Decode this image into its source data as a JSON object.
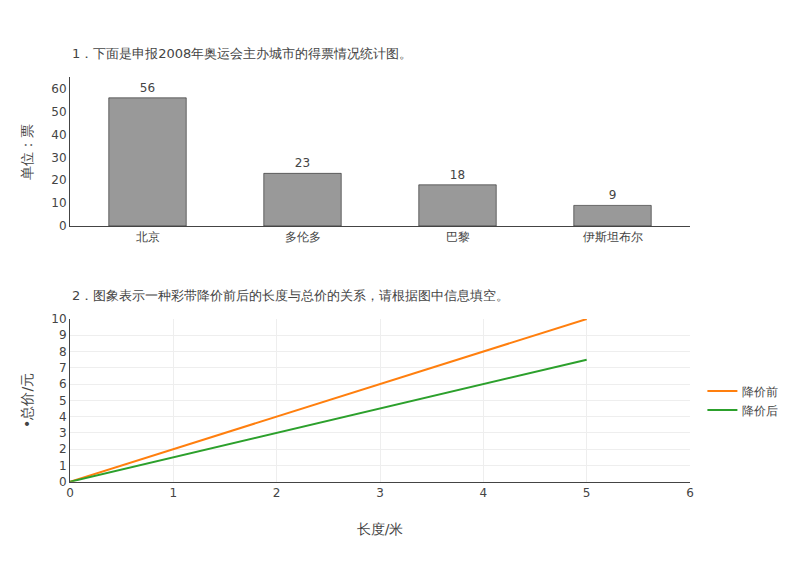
{
  "chart_data": [
    {
      "type": "bar",
      "title": "1．下面是申报2008年奥运会主办城市的得票情况统计图。",
      "categories": [
        "北京",
        "多伦多",
        "巴黎",
        "伊斯坦布尔"
      ],
      "values": [
        56,
        23,
        18,
        9
      ],
      "color": "#999999",
      "ylabel": "单位：票",
      "ylim": [
        0,
        65
      ],
      "yticks": [
        0,
        10,
        20,
        30,
        40,
        50,
        60
      ],
      "grid": false,
      "data_labels": true
    },
    {
      "type": "line",
      "title": "2．图象表示一种彩带降价前后的长度与总价的关系，请根据图中信息填空。",
      "x": [
        0,
        5
      ],
      "series": [
        {
          "name": "降价前",
          "values": [
            0,
            10
          ]
        },
        {
          "name": "降价后",
          "values": [
            0,
            7.5
          ]
        }
      ],
      "xlabel": "长度/米",
      "ylabel": "•总价/元",
      "xlim": [
        0,
        6
      ],
      "xticks": [
        0,
        1,
        2,
        3,
        4,
        5,
        6
      ],
      "ylim": [
        0,
        10
      ],
      "yticks": [
        0,
        1,
        2,
        3,
        4,
        5,
        6,
        7,
        8,
        9,
        10
      ],
      "grid": true,
      "legend": "right"
    }
  ]
}
